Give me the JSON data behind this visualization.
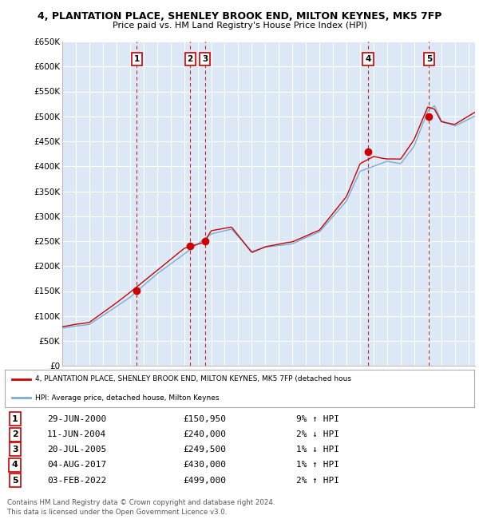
{
  "title": "4, PLANTATION PLACE, SHENLEY BROOK END, MILTON KEYNES, MK5 7FP",
  "subtitle": "Price paid vs. HM Land Registry's House Price Index (HPI)",
  "ylabel_ticks": [
    "£0",
    "£50K",
    "£100K",
    "£150K",
    "£200K",
    "£250K",
    "£300K",
    "£350K",
    "£400K",
    "£450K",
    "£500K",
    "£550K",
    "£600K",
    "£650K"
  ],
  "ytick_vals": [
    0,
    50000,
    100000,
    150000,
    200000,
    250000,
    300000,
    350000,
    400000,
    450000,
    500000,
    550000,
    600000,
    650000
  ],
  "plot_bg_color": "#dce8f5",
  "grid_color": "#ffffff",
  "sale_color": "#cc0000",
  "hpi_color": "#7aadd4",
  "sale_dates_x": [
    2000.49,
    2004.44,
    2005.55,
    2017.59,
    2022.09
  ],
  "sale_prices_y": [
    150950,
    240000,
    249500,
    430000,
    499000
  ],
  "sale_labels": [
    "1",
    "2",
    "3",
    "4",
    "5"
  ],
  "sale_label_dates": [
    "29-JUN-2000",
    "11-JUN-2004",
    "20-JUL-2005",
    "04-AUG-2017",
    "03-FEB-2022"
  ],
  "sale_label_prices": [
    "£150,950",
    "£240,000",
    "£249,500",
    "£430,000",
    "£499,000"
  ],
  "sale_label_hpi": [
    "9% ↑ HPI",
    "2% ↓ HPI",
    "1% ↓ HPI",
    "1% ↑ HPI",
    "2% ↑ HPI"
  ],
  "legend_sale_text": "4, PLANTATION PLACE, SHENLEY BROOK END, MILTON KEYNES, MK5 7FP (detached hous",
  "legend_hpi_text": "HPI: Average price, detached house, Milton Keynes",
  "footer1": "Contains HM Land Registry data © Crown copyright and database right 2024.",
  "footer2": "This data is licensed under the Open Government Licence v3.0.",
  "xmin": 1995.0,
  "xmax": 2025.5,
  "ymin": 0,
  "ymax": 650000
}
